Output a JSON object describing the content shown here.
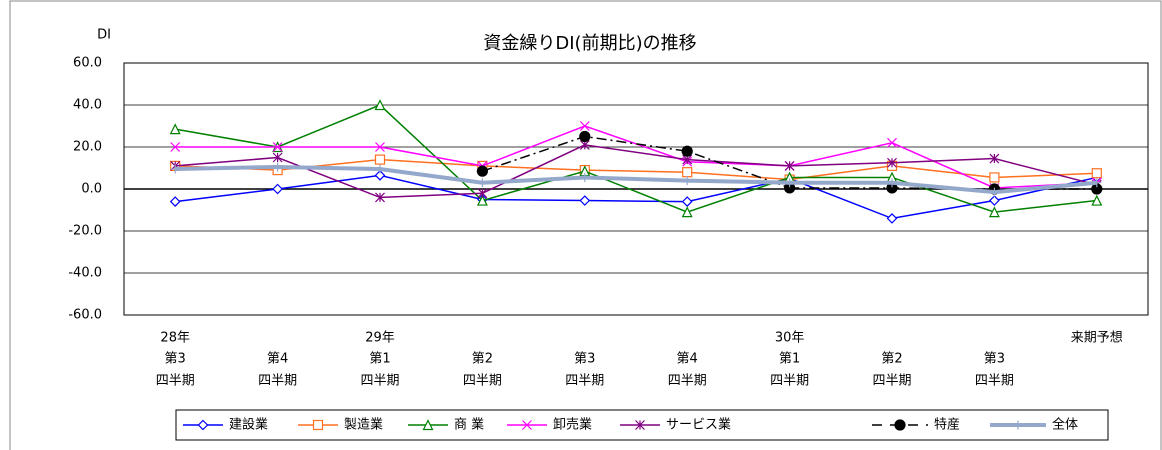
{
  "chart_data": {
    "type": "line",
    "title": "資金繰りDI(前期比)の推移",
    "ylabel": "DI",
    "categories": [
      [
        "28年",
        "第3",
        "四半期"
      ],
      [
        "第4",
        "四半期"
      ],
      [
        "29年",
        "第1",
        "四半期"
      ],
      [
        "第2",
        "四半期"
      ],
      [
        "第3",
        "四半期"
      ],
      [
        "第4",
        "四半期"
      ],
      [
        "30年",
        "第1",
        "四半期"
      ],
      [
        "第2",
        "四半期"
      ],
      [
        "第3",
        "四半期"
      ],
      [
        "来期予想"
      ]
    ],
    "ylim": [
      -60,
      60
    ],
    "yticks": [
      {
        "value": -60,
        "label": "-60.0"
      },
      {
        "value": -40,
        "label": "-40.0"
      },
      {
        "value": -20,
        "label": "-20.0"
      },
      {
        "value": 0,
        "label": "0.0"
      },
      {
        "value": 20,
        "label": "20.0"
      },
      {
        "value": 40,
        "label": "40.0"
      },
      {
        "value": 60,
        "label": "60.0"
      }
    ],
    "grid": true,
    "legend": "bottom",
    "series": [
      {
        "name": "建設業",
        "color": "#0000ff",
        "marker": "diamond",
        "values": [
          -6,
          0,
          6.5,
          -5,
          -5.5,
          -6,
          5,
          -14,
          -5.5,
          5.5
        ]
      },
      {
        "name": "製造業",
        "color": "#ff7020",
        "marker": "square",
        "values": [
          11,
          9,
          14,
          11,
          9,
          8,
          4.5,
          11,
          5.5,
          7.5
        ]
      },
      {
        "name": "商 業",
        "color": "#008000",
        "marker": "triangle",
        "values": [
          28.5,
          20,
          40,
          -5.5,
          8.5,
          -11,
          5.5,
          5.5,
          -11,
          -5.5
        ]
      },
      {
        "name": "卸売業",
        "color": "#ff00ff",
        "marker": "x",
        "values": [
          20,
          20,
          20,
          11,
          30,
          13,
          11,
          22,
          0.5,
          3
        ]
      },
      {
        "name": "サービス業",
        "color": "#800080",
        "marker": "star",
        "values": [
          11,
          15,
          -4,
          -2,
          21,
          14,
          11,
          12.5,
          14.5,
          2
        ]
      },
      {
        "name": "特産",
        "color": "#000000",
        "marker": "circle",
        "dash": "dashdot",
        "values": [
          null,
          null,
          null,
          8.5,
          25,
          18,
          0.5,
          0.5,
          0,
          0
        ]
      },
      {
        "name": "全体",
        "color": "#94a8cc",
        "marker": "plus",
        "width": 4,
        "values": [
          9.5,
          10.5,
          9.5,
          3,
          5.5,
          4,
          3,
          3,
          -1.5,
          3
        ]
      }
    ]
  }
}
